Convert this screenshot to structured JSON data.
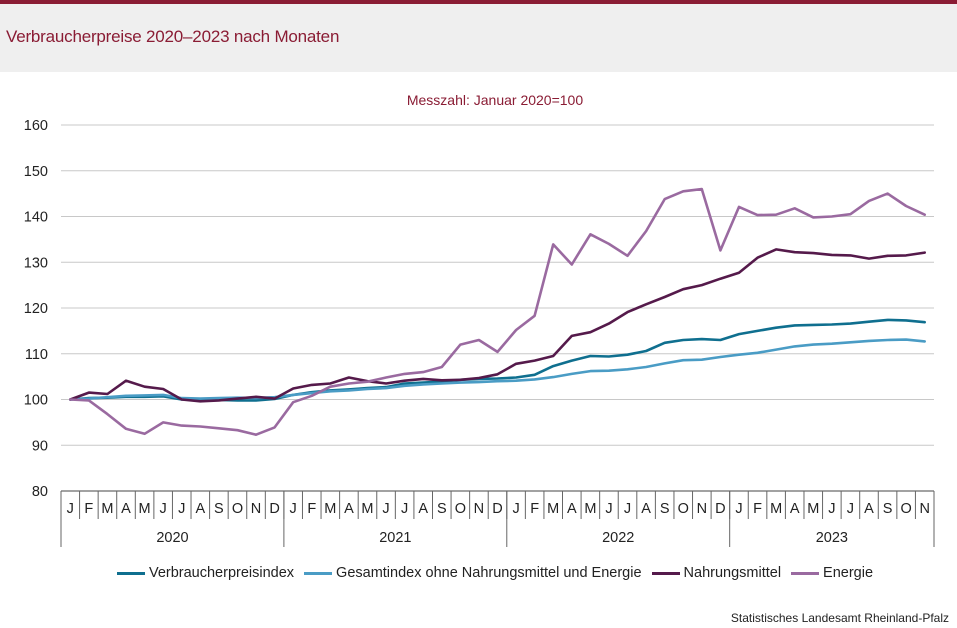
{
  "header": {
    "title": "Verbraucherpreise 2020–2023 nach Monaten"
  },
  "source": "Statistisches Landesamt Rheinland-Pfalz",
  "colors": {
    "accent": "#8a1c34"
  },
  "chart_data": {
    "type": "line",
    "subtitle": "Messzahl:  Januar  2020=100",
    "ylim": [
      80,
      160
    ],
    "yticks": [
      80,
      90,
      100,
      110,
      120,
      130,
      140,
      150,
      160
    ],
    "grid": true,
    "legend_position": "bottom",
    "month_labels": [
      "J",
      "F",
      "M",
      "A",
      "M",
      "J",
      "J",
      "A",
      "S",
      "O",
      "N",
      "D",
      "J",
      "F",
      "M",
      "A",
      "M",
      "J",
      "J",
      "A",
      "S",
      "O",
      "N",
      "D",
      "J",
      "F",
      "M",
      "A",
      "M",
      "J",
      "J",
      "A",
      "S",
      "O",
      "N",
      "D",
      "J",
      "F",
      "M",
      "A",
      "M",
      "J",
      "J",
      "A",
      "S",
      "O",
      "N"
    ],
    "years": [
      {
        "label": "2020",
        "months": 12
      },
      {
        "label": "2021",
        "months": 12
      },
      {
        "label": "2022",
        "months": 12
      },
      {
        "label": "2023",
        "months": 11
      }
    ],
    "series": [
      {
        "name": "Verbraucherpreisindex",
        "color": "#0f6f8f",
        "values": [
          100,
          100.3,
          100.4,
          100.6,
          100.6,
          100.7,
          100.0,
          99.9,
          99.9,
          99.8,
          99.8,
          100.1,
          101.0,
          101.6,
          102.0,
          102.2,
          102.5,
          102.7,
          103.5,
          103.7,
          103.9,
          104.3,
          104.5,
          104.6,
          104.8,
          105.4,
          107.3,
          108.5,
          109.5,
          109.4,
          109.8,
          110.6,
          112.4,
          113.0,
          113.2,
          113.0,
          114.3,
          115.0,
          115.7,
          116.2,
          116.3,
          116.4,
          116.6,
          117.0,
          117.4,
          117.3,
          116.9
        ]
      },
      {
        "name": "Gesamtindex ohne Nahrungsmittel und Energie",
        "color": "#4a9cc5",
        "values": [
          100,
          100.2,
          100.5,
          100.8,
          100.9,
          101.0,
          100.3,
          100.2,
          100.3,
          100.4,
          100.3,
          100.5,
          101.0,
          101.4,
          101.8,
          102.0,
          102.3,
          102.5,
          103.0,
          103.3,
          103.5,
          103.7,
          103.8,
          104.0,
          104.1,
          104.4,
          104.9,
          105.6,
          106.2,
          106.3,
          106.6,
          107.1,
          107.9,
          108.6,
          108.7,
          109.3,
          109.8,
          110.2,
          110.9,
          111.6,
          112.0,
          112.2,
          112.5,
          112.8,
          113.0,
          113.1,
          112.7
        ]
      },
      {
        "name": "Nahrungsmittel",
        "color": "#551a4b",
        "values": [
          100,
          101.5,
          101.2,
          104.1,
          102.8,
          102.3,
          100.0,
          99.6,
          99.8,
          100.2,
          100.6,
          100.2,
          102.4,
          103.2,
          103.5,
          104.8,
          104.0,
          103.5,
          104.1,
          104.5,
          104.2,
          104.3,
          104.7,
          105.5,
          107.8,
          108.5,
          109.5,
          113.9,
          114.7,
          116.6,
          119.1,
          120.8,
          122.4,
          124.1,
          125.0,
          126.4,
          127.7,
          131.0,
          132.8,
          132.2,
          132.0,
          131.6,
          131.5,
          130.8,
          131.4,
          131.5,
          132.1
        ]
      },
      {
        "name": "Energie",
        "color": "#9a6aa0",
        "values": [
          100,
          99.8,
          96.8,
          93.6,
          92.5,
          95.0,
          94.3,
          94.1,
          93.7,
          93.3,
          92.3,
          93.9,
          99.4,
          100.8,
          102.8,
          103.5,
          103.9,
          104.8,
          105.6,
          106.0,
          107.1,
          112.0,
          113.0,
          110.4,
          115.2,
          118.3,
          133.9,
          129.5,
          136.1,
          134.0,
          131.4,
          136.8,
          143.8,
          145.5,
          146.0,
          132.6,
          142.1,
          140.3,
          140.4,
          141.8,
          139.8,
          140.0,
          140.5,
          143.4,
          145.0,
          142.3,
          140.4
        ]
      }
    ]
  }
}
